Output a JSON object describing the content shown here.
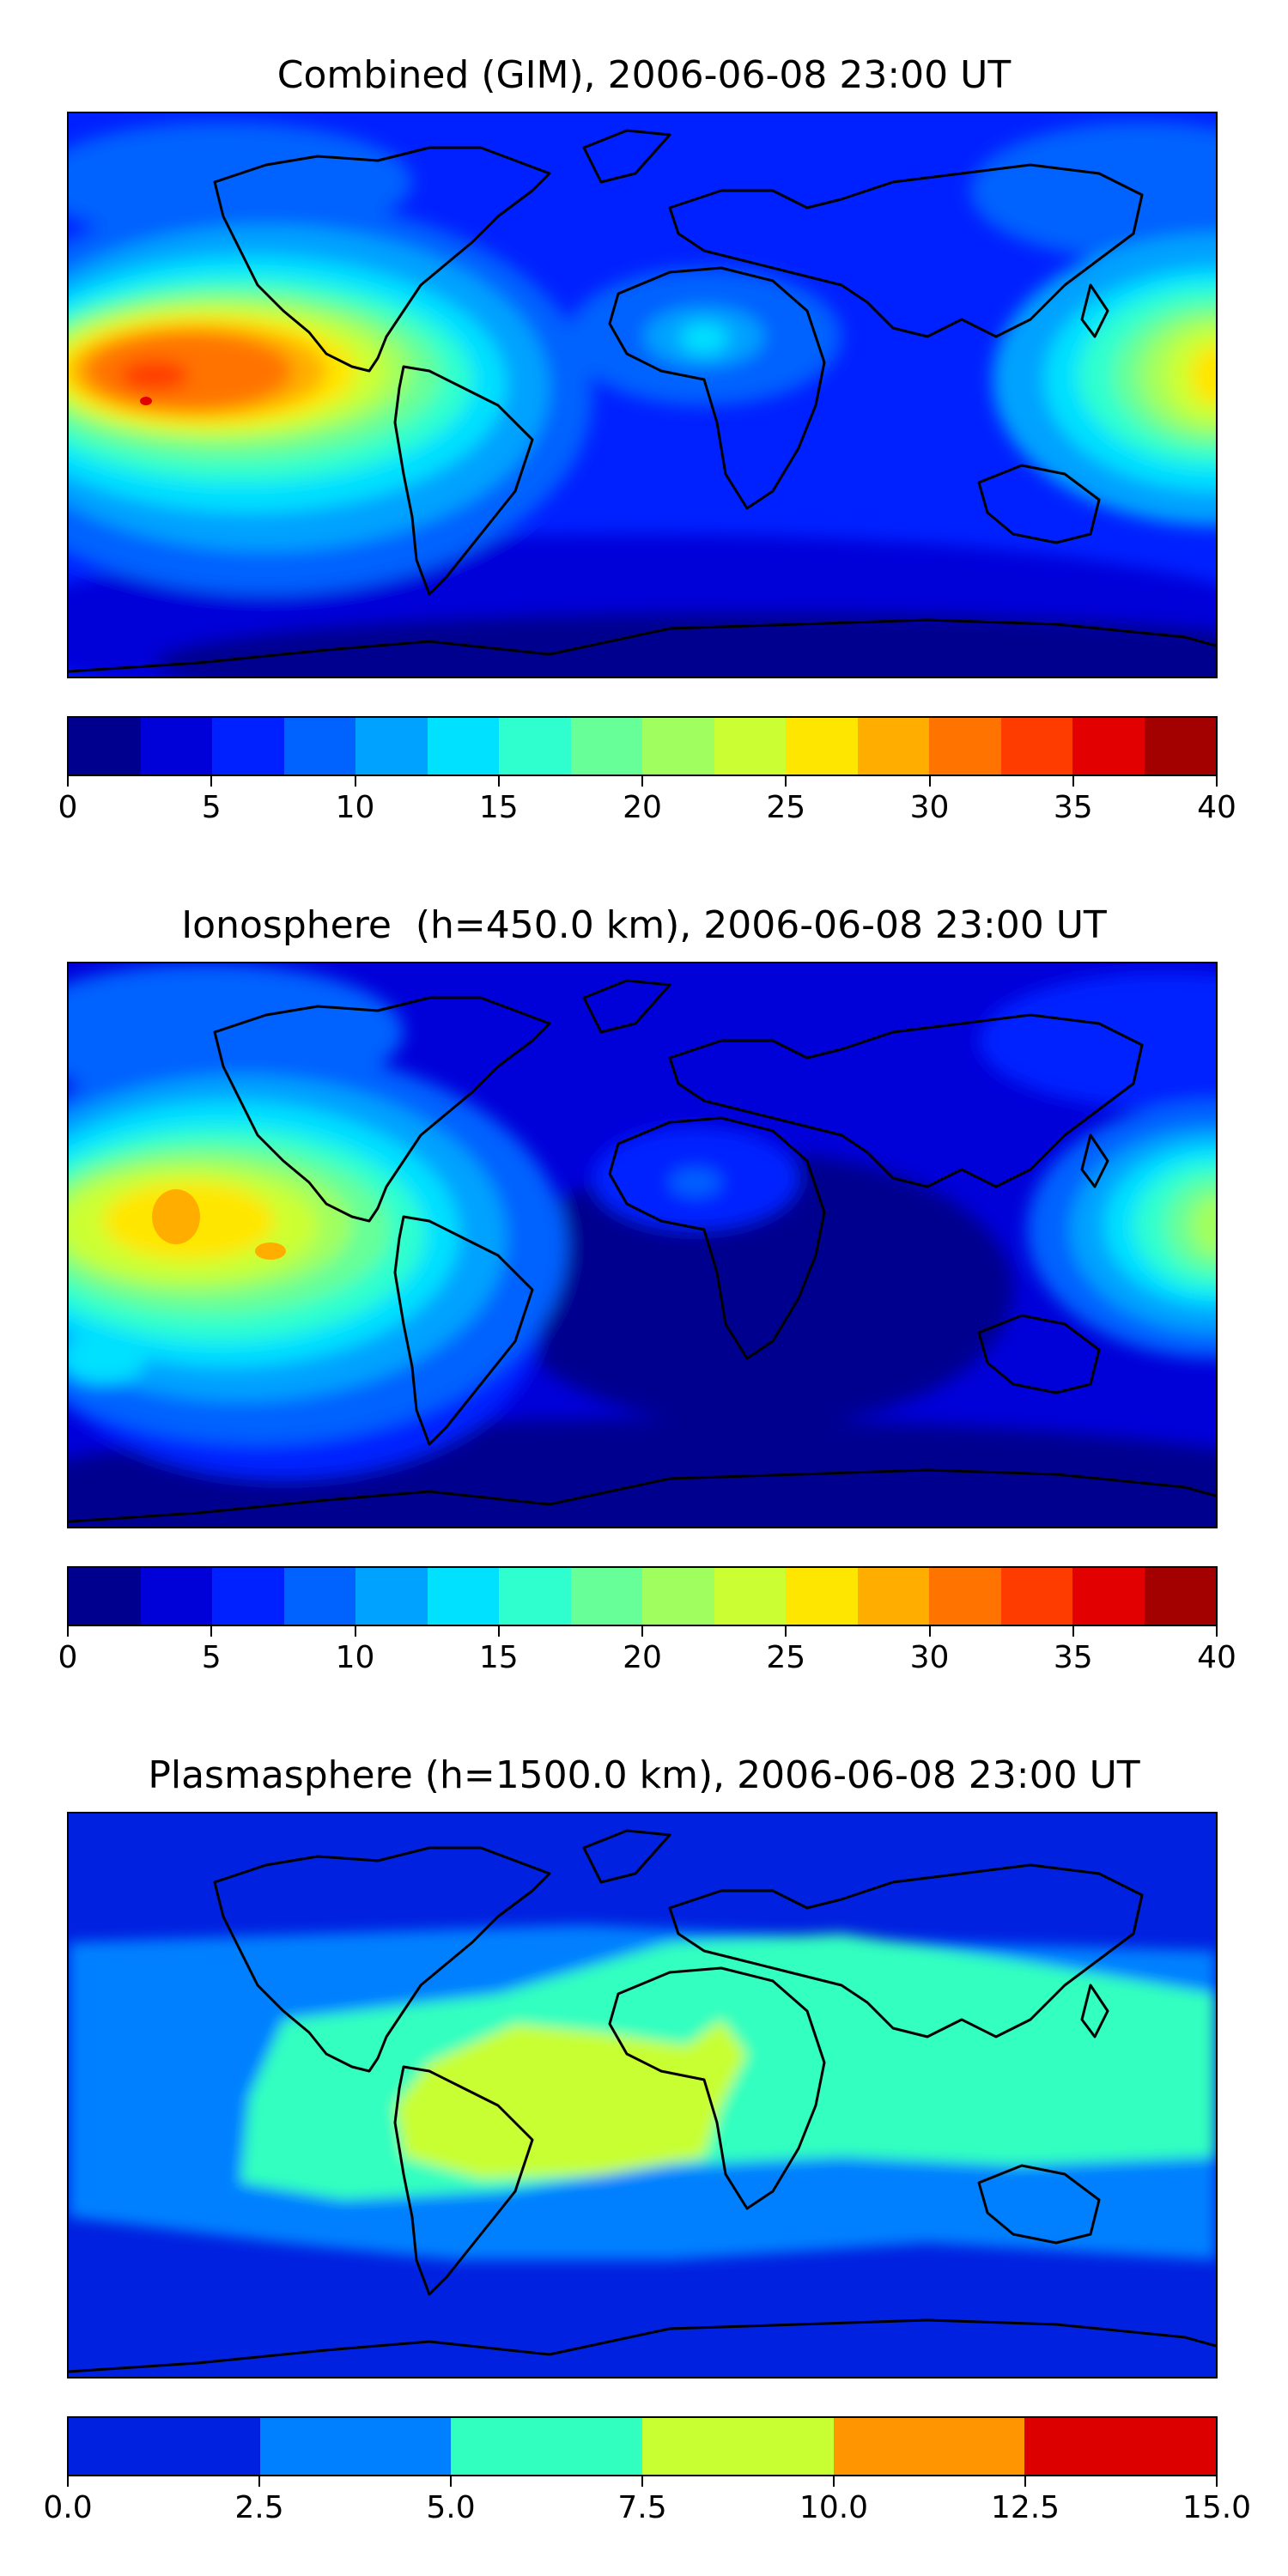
{
  "panels": [
    {
      "title": "Combined (GIM), 2006-06-08 23:00 UT",
      "colors": [
        "#00008f",
        "#0000d9",
        "#0021ff",
        "#0062ff",
        "#00a2ff",
        "#00e0ff",
        "#2fffcf",
        "#66ff98",
        "#a0ff5f",
        "#ccff33",
        "#ffe600",
        "#ffae00",
        "#ff7300",
        "#ff3c00",
        "#e30000",
        "#a30000"
      ],
      "tick_labels": [
        "0",
        "5",
        "10",
        "15",
        "20",
        "25",
        "30",
        "35",
        "40"
      ]
    },
    {
      "title": "Ionosphere  (h=450.0 km), 2006-06-08 23:00 UT",
      "colors": [
        "#00008f",
        "#0000d9",
        "#0021ff",
        "#0062ff",
        "#00a2ff",
        "#00e0ff",
        "#2fffcf",
        "#66ff98",
        "#a0ff5f",
        "#ccff33",
        "#ffe600",
        "#ffae00",
        "#ff7300",
        "#ff3c00",
        "#e30000",
        "#a30000"
      ],
      "tick_labels": [
        "0",
        "5",
        "10",
        "15",
        "20",
        "25",
        "30",
        "35",
        "40"
      ]
    },
    {
      "title": "Plasmasphere (h=1500.0 km), 2006-06-08 23:00 UT",
      "colors": [
        "#0021e0",
        "#0080ff",
        "#30ffc0",
        "#c8ff33",
        "#ff9500",
        "#dd0000"
      ],
      "tick_labels": [
        "0.0",
        "2.5",
        "5.0",
        "7.5",
        "10.0",
        "12.5",
        "15.0"
      ]
    }
  ],
  "chart_data": [
    {
      "type": "heatmap",
      "title": "Combined (GIM), 2006-06-08 23:00 UT",
      "colorbar_range": [
        0,
        40
      ],
      "colorbar_levels": [
        0,
        2.5,
        5,
        7.5,
        10,
        12.5,
        15,
        17.5,
        20,
        22.5,
        25,
        27.5,
        30,
        32.5,
        35,
        37.5,
        40
      ],
      "colorbar_ticks": [
        0,
        5,
        10,
        15,
        20,
        25,
        30,
        35,
        40
      ],
      "features": [
        "maximum ~35 over the eastern Pacific west of Central America",
        "secondary maximum ~27 over the western Pacific near 180°",
        "minimum 0-5 at high southern latitudes"
      ]
    },
    {
      "type": "heatmap",
      "title": "Ionosphere  (h=450.0 km), 2006-06-08 23:00 UT",
      "colorbar_range": [
        0,
        40
      ],
      "colorbar_levels": [
        0,
        2.5,
        5,
        7.5,
        10,
        12.5,
        15,
        17.5,
        20,
        22.5,
        25,
        27.5,
        30,
        32.5,
        35,
        37.5,
        40
      ],
      "colorbar_ticks": [
        0,
        5,
        10,
        15,
        20,
        25,
        30,
        35,
        40
      ],
      "features": [
        "maximum ~27 over the eastern Pacific",
        "secondary maximum ~22 over the western Pacific",
        "minimum 0-2.5 over the South Atlantic, Africa and Antarctica"
      ]
    },
    {
      "type": "heatmap",
      "title": "Plasmasphere (h=1500.0 km), 2006-06-08 23:00 UT",
      "colorbar_range": [
        0,
        15
      ],
      "colorbar_levels": [
        0,
        2.5,
        5,
        7.5,
        10,
        12.5,
        15
      ],
      "colorbar_ticks": [
        0,
        2.5,
        5,
        7.5,
        10,
        12.5,
        15
      ],
      "features": [
        "maximum 7.5-10 over South America and the South Atlantic",
        "5-7.5 equatorial band",
        "0-2.5 at high latitudes"
      ]
    }
  ]
}
